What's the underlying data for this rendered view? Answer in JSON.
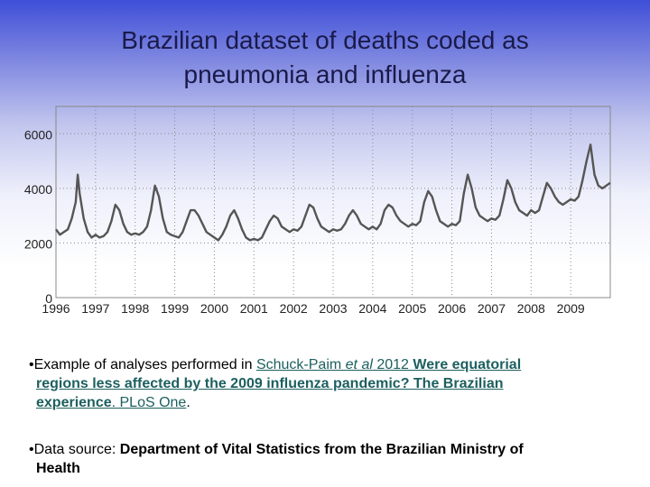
{
  "slide": {
    "title_line1": "Brazilian dataset of deaths coded as",
    "title_line2": "pneumonia and influenza"
  },
  "notes": {
    "note1": {
      "bullet": "•",
      "prefix": "Example of analyses performed in  ",
      "author": "Schuck-Paim ",
      "etal": "et al",
      "year": " 2012 ",
      "article_title_1": "Were equatorial",
      "article_title_2": "regions less affected by the 2009 influenza pandemic? The Brazilian",
      "article_title_3": "experience",
      "sep": ". ",
      "journal": "PLoS One",
      "end": "."
    },
    "note2": {
      "bullet": "•",
      "prefix": "Data source:  ",
      "source_1": "Department of Vital Statistics from the Brazilian Ministry of",
      "source_2": "Health"
    }
  },
  "chart_data": {
    "type": "line",
    "title": "",
    "xlabel": "",
    "ylabel": "",
    "xlim": [
      1996,
      2010
    ],
    "ylim": [
      0,
      7000
    ],
    "y_ticks": [
      0,
      2000,
      4000,
      6000
    ],
    "y_tick_labels": [
      "0",
      "2000",
      "4000",
      "6000"
    ],
    "x_ticks": [
      1996,
      1997,
      1998,
      1999,
      2000,
      2001,
      2002,
      2003,
      2004,
      2005,
      2006,
      2007,
      2008,
      2009
    ],
    "x_tick_labels": [
      "1996",
      "1997",
      "1998",
      "1999",
      "2000",
      "2001",
      "2002",
      "2003",
      "2004",
      "2005",
      "2006",
      "2007",
      "2008",
      "2009"
    ],
    "grid": true,
    "line_color": "#555555",
    "series": [
      {
        "name": "Deaths coded as pneumonia and influenza",
        "x": [
          1996.0,
          1996.1,
          1996.2,
          1996.3,
          1996.4,
          1996.5,
          1996.55,
          1996.6,
          1996.7,
          1996.8,
          1996.9,
          1997.0,
          1997.1,
          1997.2,
          1997.3,
          1997.4,
          1997.5,
          1997.6,
          1997.7,
          1997.8,
          1997.9,
          1998.0,
          1998.1,
          1998.2,
          1998.3,
          1998.4,
          1998.5,
          1998.6,
          1998.7,
          1998.8,
          1998.9,
          1999.0,
          1999.1,
          1999.2,
          1999.3,
          1999.4,
          1999.5,
          1999.6,
          1999.7,
          1999.8,
          1999.9,
          2000.0,
          2000.1,
          2000.2,
          2000.3,
          2000.4,
          2000.5,
          2000.6,
          2000.7,
          2000.8,
          2000.9,
          2001.0,
          2001.1,
          2001.2,
          2001.3,
          2001.4,
          2001.5,
          2001.6,
          2001.7,
          2001.8,
          2001.9,
          2002.0,
          2002.1,
          2002.2,
          2002.3,
          2002.4,
          2002.5,
          2002.6,
          2002.7,
          2002.8,
          2002.9,
          2003.0,
          2003.1,
          2003.2,
          2003.3,
          2003.4,
          2003.5,
          2003.6,
          2003.7,
          2003.8,
          2003.9,
          2004.0,
          2004.1,
          2004.2,
          2004.3,
          2004.4,
          2004.5,
          2004.6,
          2004.7,
          2004.8,
          2004.9,
          2005.0,
          2005.1,
          2005.2,
          2005.3,
          2005.4,
          2005.5,
          2005.6,
          2005.7,
          2005.8,
          2005.9,
          2006.0,
          2006.1,
          2006.2,
          2006.3,
          2006.4,
          2006.5,
          2006.6,
          2006.7,
          2006.8,
          2006.9,
          2007.0,
          2007.1,
          2007.2,
          2007.3,
          2007.4,
          2007.5,
          2007.6,
          2007.7,
          2007.8,
          2007.9,
          2008.0,
          2008.1,
          2008.2,
          2008.3,
          2008.4,
          2008.5,
          2008.6,
          2008.7,
          2008.8,
          2008.9,
          2009.0,
          2009.1,
          2009.2,
          2009.3,
          2009.4,
          2009.5,
          2009.6,
          2009.7,
          2009.8,
          2009.9,
          2010.0
        ],
        "y": [
          2500,
          2300,
          2400,
          2500,
          2900,
          3500,
          4500,
          3800,
          2900,
          2400,
          2200,
          2300,
          2200,
          2250,
          2400,
          2800,
          3400,
          3200,
          2700,
          2400,
          2300,
          2350,
          2300,
          2400,
          2600,
          3200,
          4100,
          3700,
          2900,
          2400,
          2300,
          2250,
          2200,
          2400,
          2800,
          3200,
          3200,
          3000,
          2700,
          2400,
          2300,
          2200,
          2100,
          2300,
          2600,
          3000,
          3200,
          2900,
          2500,
          2200,
          2100,
          2150,
          2100,
          2200,
          2500,
          2800,
          3000,
          2900,
          2600,
          2500,
          2400,
          2500,
          2450,
          2600,
          3000,
          3400,
          3300,
          2900,
          2600,
          2500,
          2400,
          2500,
          2450,
          2500,
          2700,
          3000,
          3200,
          3000,
          2700,
          2600,
          2500,
          2600,
          2500,
          2700,
          3200,
          3400,
          3300,
          3000,
          2800,
          2700,
          2600,
          2700,
          2650,
          2800,
          3500,
          3900,
          3700,
          3200,
          2800,
          2700,
          2600,
          2700,
          2650,
          2800,
          3800,
          4500,
          4000,
          3300,
          3000,
          2900,
          2800,
          2900,
          2850,
          3000,
          3600,
          4300,
          4000,
          3500,
          3200,
          3100,
          3000,
          3200,
          3100,
          3200,
          3700,
          4200,
          4000,
          3700,
          3500,
          3400,
          3500,
          3600,
          3550,
          3700,
          4300,
          5000,
          5600,
          4500,
          4100,
          4000,
          4100,
          4200
        ]
      }
    ]
  }
}
